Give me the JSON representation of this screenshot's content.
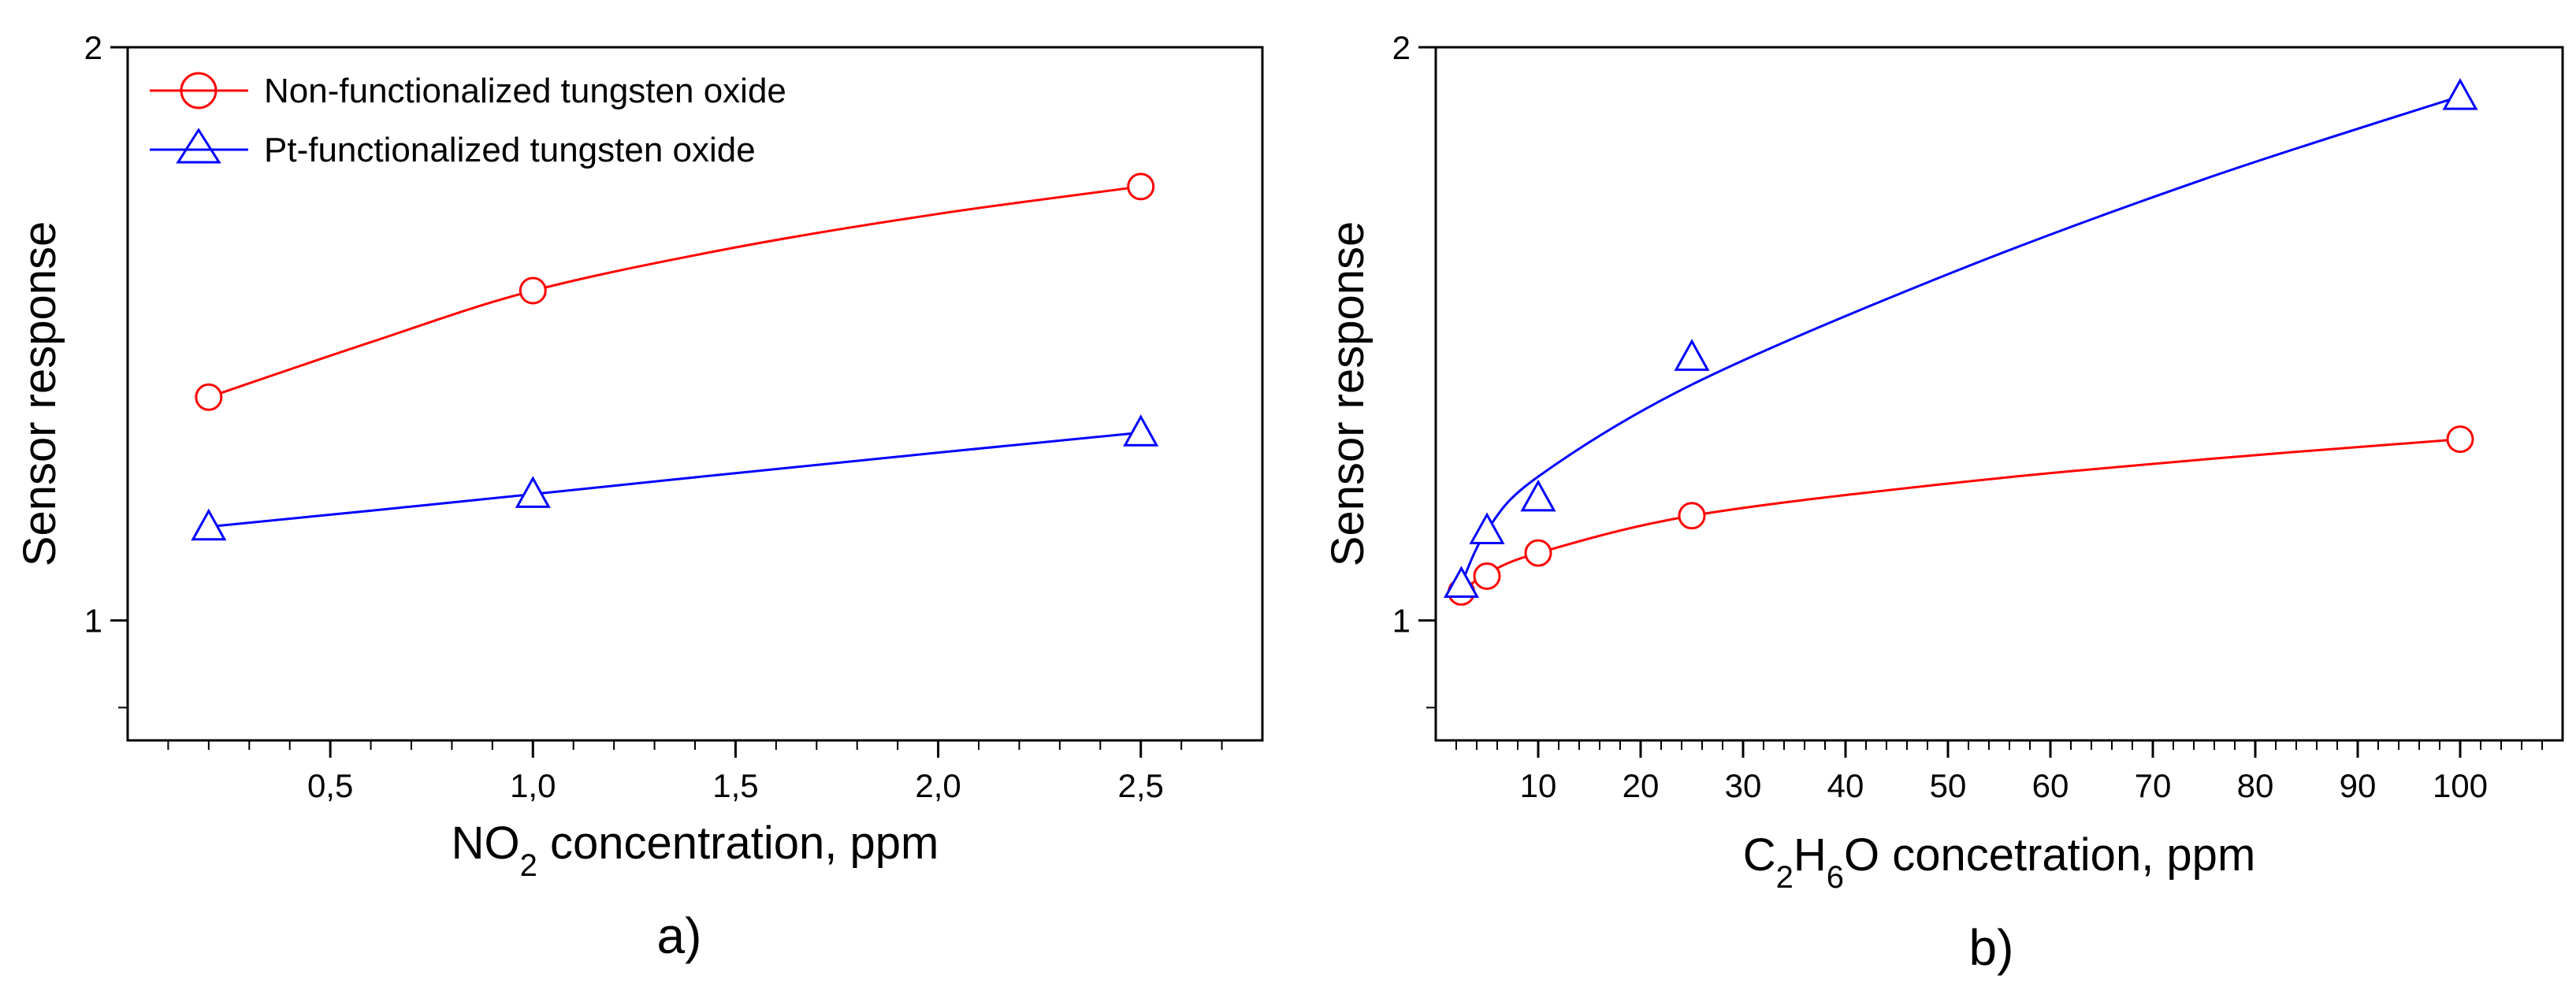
{
  "chart_data": [
    {
      "type": "line",
      "panel_label": "a)",
      "xlabel": {
        "main": "NO",
        "sub": "2",
        "rest": " concentration, ppm"
      },
      "ylabel": "Sensor response",
      "yscale": "log",
      "xlim": [
        0.0,
        2.8
      ],
      "ylim": [
        0.865,
        2.0
      ],
      "xticks": [
        0.5,
        1.0,
        1.5,
        2.0,
        2.5
      ],
      "xtick_labels": [
        "0,5",
        "1,0",
        "1,5",
        "2,0",
        "2,5"
      ],
      "yticks": [
        1,
        2
      ],
      "ytick_labels": [
        "1",
        "2"
      ],
      "legend_position": "top-left",
      "series": [
        {
          "name": "Non-functionalized tungsten oxide",
          "color": "#ff0000",
          "marker": "circle",
          "x": [
            0.2,
            1.0,
            2.5
          ],
          "y": [
            1.31,
            1.49,
            1.69
          ],
          "curve_x": [
            0.2,
            0.6,
            1.0,
            1.5,
            2.0,
            2.5
          ],
          "curve_y": [
            1.31,
            1.4,
            1.49,
            1.57,
            1.635,
            1.69
          ]
        },
        {
          "name": "Pt-functionalized tungsten oxide",
          "color": "#0000ff",
          "marker": "triangle",
          "x": [
            0.2,
            1.0,
            2.5
          ],
          "y": [
            1.12,
            1.165,
            1.255
          ],
          "curve_x": [
            0.2,
            0.6,
            1.0,
            1.5,
            2.0,
            2.5
          ],
          "curve_y": [
            1.12,
            1.142,
            1.165,
            1.195,
            1.225,
            1.255
          ]
        }
      ]
    },
    {
      "type": "line",
      "panel_label": "b)",
      "xlabel": {
        "c": "C",
        "sub1": "2",
        "h": "H",
        "sub2": "6",
        "rest": "O concetration, ppm"
      },
      "ylabel": "Sensor response",
      "yscale": "log",
      "xlim": [
        0,
        110
      ],
      "ylim": [
        0.865,
        2.0
      ],
      "xticks": [
        10,
        20,
        30,
        40,
        50,
        60,
        70,
        80,
        90,
        100
      ],
      "xtick_labels": [
        "10",
        "20",
        "30",
        "40",
        "50",
        "60",
        "70",
        "80",
        "90",
        "100"
      ],
      "yticks": [
        1,
        2
      ],
      "ytick_labels": [
        "1",
        "2"
      ],
      "series": [
        {
          "name": "Non-functionalized tungsten oxide",
          "color": "#ff0000",
          "marker": "circle",
          "x": [
            2.5,
            5,
            10,
            25,
            100
          ],
          "y": [
            1.035,
            1.055,
            1.085,
            1.135,
            1.245
          ],
          "curve_x": [
            2.5,
            5,
            10,
            25,
            50,
            75,
            100
          ],
          "curve_y": [
            1.035,
            1.058,
            1.085,
            1.135,
            1.18,
            1.215,
            1.245
          ]
        },
        {
          "name": "Pt-functionalized tungsten oxide",
          "color": "#0000ff",
          "marker": "triangle",
          "x": [
            2.5,
            5,
            10,
            25,
            100
          ],
          "y": [
            1.045,
            1.115,
            1.16,
            1.375,
            1.885
          ],
          "curve_x": [
            2.5,
            5,
            10,
            25,
            50,
            75,
            100
          ],
          "curve_y": [
            1.045,
            1.115,
            1.19,
            1.33,
            1.52,
            1.705,
            1.885
          ]
        }
      ]
    }
  ]
}
